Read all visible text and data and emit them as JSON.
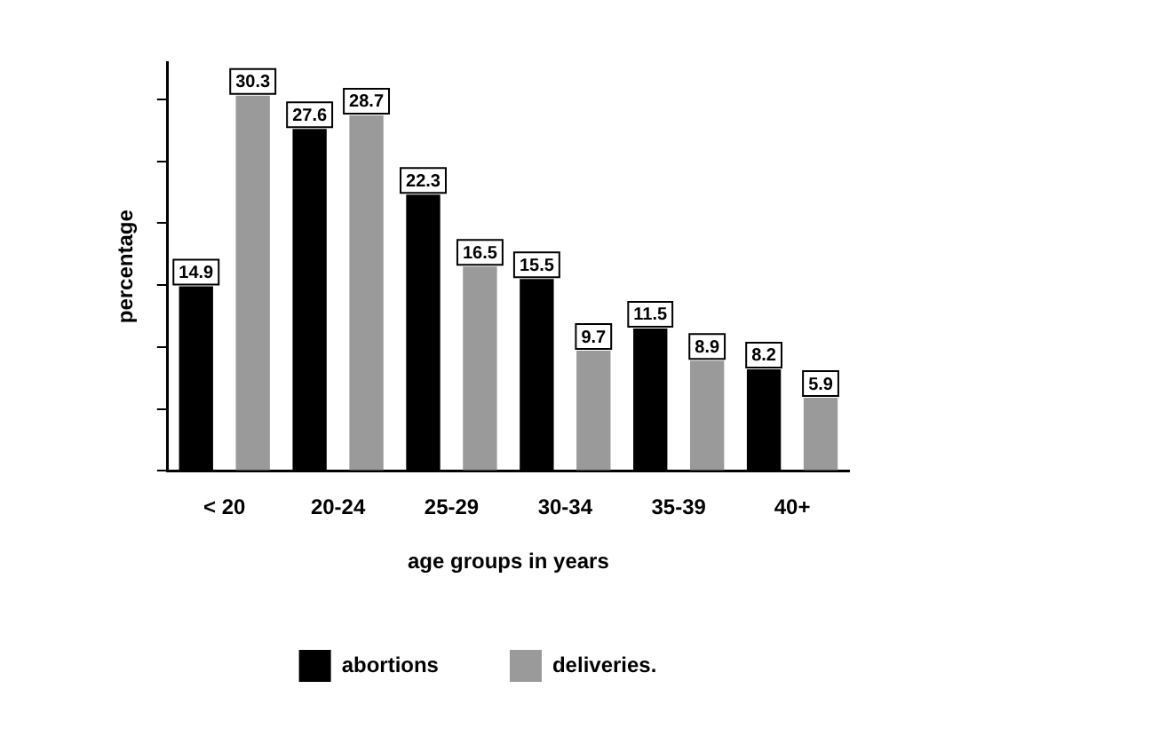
{
  "chart_data": {
    "type": "bar",
    "xlabel": "age groups in years",
    "ylabel": "percentage",
    "categories": [
      "< 20",
      "20-24",
      "25-29",
      "30-34",
      "35-39",
      "40+"
    ],
    "series": [
      {
        "name": "abortions",
        "color": "#000000",
        "values": [
          14.9,
          27.6,
          22.3,
          15.5,
          11.5,
          8.2
        ]
      },
      {
        "name": "deliveries.",
        "color": "#9a9a9a",
        "values": [
          30.3,
          28.7,
          16.5,
          9.7,
          8.9,
          5.9
        ]
      }
    ],
    "ylim": [
      0,
      33
    ],
    "yticks": [
      {
        "value": 0,
        "label": null
      },
      {
        "value": 5,
        "label": null
      },
      {
        "value": 10,
        "label": null
      },
      {
        "value": 15,
        "label": null
      },
      {
        "value": 20,
        "label": null
      },
      {
        "value": 25,
        "label": null
      },
      {
        "value": 30,
        "label": null
      }
    ],
    "tick_labels": "x",
    "grid": false,
    "legend": "bottom",
    "data_labels": true
  }
}
